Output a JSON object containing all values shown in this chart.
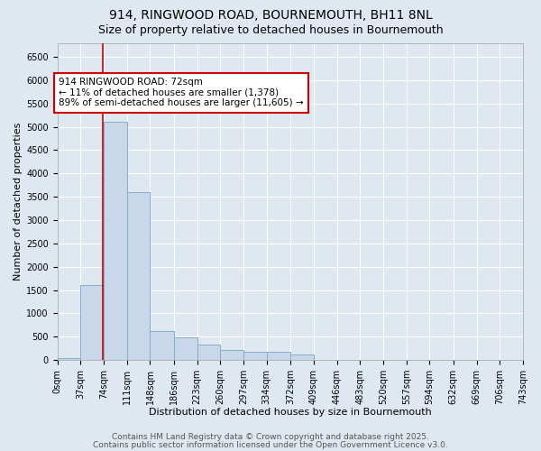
{
  "title1": "914, RINGWOOD ROAD, BOURNEMOUTH, BH11 8NL",
  "title2": "Size of property relative to detached houses in Bournemouth",
  "xlabel": "Distribution of detached houses by size in Bournemouth",
  "ylabel": "Number of detached properties",
  "bin_edges": [
    0,
    37,
    74,
    111,
    148,
    186,
    223,
    260,
    297,
    334,
    372,
    409,
    446,
    483,
    520,
    557,
    594,
    632,
    669,
    706,
    743
  ],
  "bar_heights": [
    50,
    1600,
    5100,
    3600,
    620,
    490,
    330,
    210,
    175,
    175,
    110,
    0,
    0,
    0,
    0,
    0,
    0,
    0,
    0,
    0
  ],
  "bar_color": "#c8d8ea",
  "bar_edgecolor": "#85aec8",
  "bar_linewidth": 0.7,
  "subject_size": 72,
  "red_line_color": "#cc0000",
  "annotation_text": "914 RINGWOOD ROAD: 72sqm\n← 11% of detached houses are smaller (1,378)\n89% of semi-detached houses are larger (11,605) →",
  "annotation_box_color": "#ffffff",
  "annotation_border_color": "#cc0000",
  "annotation_fontsize": 7.5,
  "ylim_max": 6800,
  "ytick_step": 500,
  "background_color": "#dfe8f0",
  "plot_bg_color": "#dfe8f0",
  "grid_color": "#ffffff",
  "footer1": "Contains HM Land Registry data © Crown copyright and database right 2025.",
  "footer2": "Contains public sector information licensed under the Open Government Licence v3.0.",
  "title_fontsize": 10,
  "subtitle_fontsize": 9,
  "xlabel_fontsize": 8,
  "ylabel_fontsize": 8,
  "tick_fontsize": 7,
  "footer_fontsize": 6.5
}
